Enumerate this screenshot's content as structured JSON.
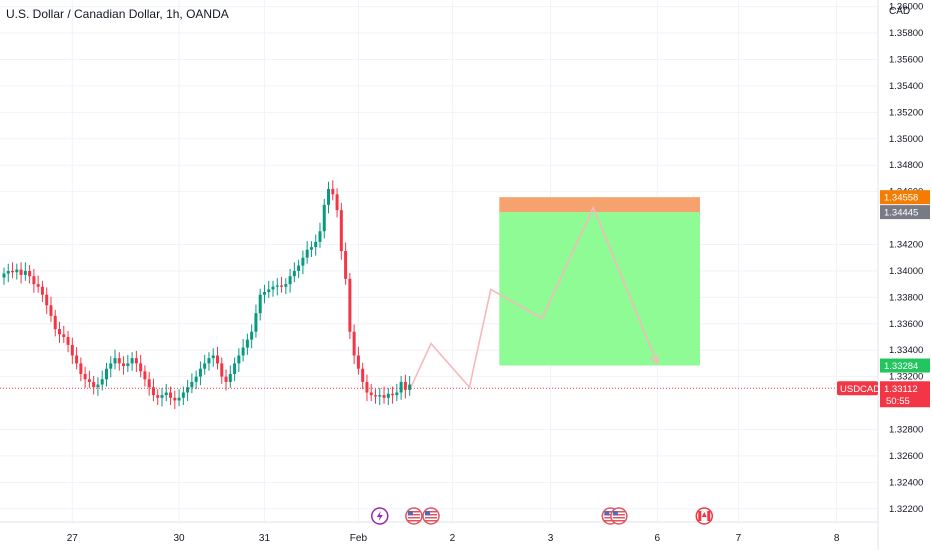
{
  "header": {
    "title": "U.S. Dollar / Canadian Dollar, 1h, OANDA",
    "currency": "CAD"
  },
  "colors": {
    "up": "#089981",
    "down": "#f23645",
    "profit_zone": "#8ffb94",
    "stop_zone": "#f5a26f",
    "projection": "#f7b8bd",
    "price_line": "#f23645",
    "event_us": "#5a67b3",
    "event_ca": "#f23645",
    "event_flash": "#9c27b0"
  },
  "chart_data": {
    "type": "candlestick",
    "symbol": "USDCAD",
    "timeframe": "1h",
    "ylim": [
      1.321,
      1.3605
    ],
    "y_ticks": [
      "1.36000",
      "1.35800",
      "1.35600",
      "1.35400",
      "1.35200",
      "1.35000",
      "1.34800",
      "1.34600",
      "1.34200",
      "1.34000",
      "1.33800",
      "1.33600",
      "1.33400",
      "1.33200",
      "1.32800",
      "1.32600",
      "1.32400",
      "1.32200"
    ],
    "x_ticks": [
      {
        "label": "27",
        "bar": 16
      },
      {
        "label": "30",
        "bar": 41
      },
      {
        "label": "31",
        "bar": 61
      },
      {
        "label": "Feb",
        "bar": 83
      },
      {
        "label": "2",
        "bar": 105
      },
      {
        "label": "3",
        "bar": 128
      },
      {
        "label": "6",
        "bar": 153
      },
      {
        "label": "7",
        "bar": 172
      },
      {
        "label": "8",
        "bar": 195
      }
    ],
    "candles_close": [
      1.3398,
      1.34,
      1.3399,
      1.3401,
      1.3397,
      1.34,
      1.3396,
      1.339,
      1.3388,
      1.3382,
      1.3374,
      1.3366,
      1.3356,
      1.3352,
      1.335,
      1.3344,
      1.3336,
      1.333,
      1.3322,
      1.3318,
      1.3316,
      1.3312,
      1.3314,
      1.3318,
      1.3326,
      1.333,
      1.3334,
      1.333,
      1.3328,
      1.333,
      1.3334,
      1.333,
      1.3324,
      1.3318,
      1.3312,
      1.3306,
      1.3304,
      1.3306,
      1.3308,
      1.3304,
      1.3302,
      1.3304,
      1.3308,
      1.3312,
      1.3316,
      1.332,
      1.3326,
      1.333,
      1.3334,
      1.3336,
      1.333,
      1.332,
      1.3316,
      1.3322,
      1.333,
      1.3336,
      1.3342,
      1.3348,
      1.3354,
      1.3368,
      1.3382,
      1.3384,
      1.3386,
      1.3388,
      1.3389,
      1.3388,
      1.339,
      1.3396,
      1.34,
      1.3404,
      1.341,
      1.3416,
      1.3418,
      1.3422,
      1.343,
      1.345,
      1.3462,
      1.3458,
      1.3446,
      1.3415,
      1.3394,
      1.3354,
      1.3336,
      1.3326,
      1.3316,
      1.3308,
      1.3306,
      1.3305,
      1.3306,
      1.3304,
      1.3307,
      1.3306,
      1.3308,
      1.3316,
      1.331,
      1.3314
    ],
    "last_price": 1.33112,
    "last_price_label": "1.33112",
    "countdown": "50:55",
    "position": {
      "start_bar": 116,
      "end_bar": 163,
      "stop": 1.34558,
      "entry": 1.34445,
      "target": 1.33284,
      "stop_label": "1.34558",
      "entry_label": "1.34445",
      "target_label": "1.33284"
    },
    "projection_path": [
      {
        "bar": 95,
        "price": 1.331
      },
      {
        "bar": 100,
        "price": 1.3345
      },
      {
        "bar": 109,
        "price": 1.3312
      },
      {
        "bar": 114,
        "price": 1.3386
      },
      {
        "bar": 126,
        "price": 1.3364
      },
      {
        "bar": 138,
        "price": 1.3448
      },
      {
        "bar": 153,
        "price": 1.333
      }
    ],
    "events": [
      {
        "icon": "flash-icon",
        "bar": 88
      },
      {
        "icon": "us-flag-icon",
        "bar": 96
      },
      {
        "icon": "us-flag-icon",
        "bar": 100
      },
      {
        "icon": "us-flag-icon",
        "bar": 142
      },
      {
        "icon": "us-flag-icon",
        "bar": 144
      },
      {
        "icon": "canada-flag-icon",
        "bar": 164
      }
    ],
    "grid": true
  }
}
